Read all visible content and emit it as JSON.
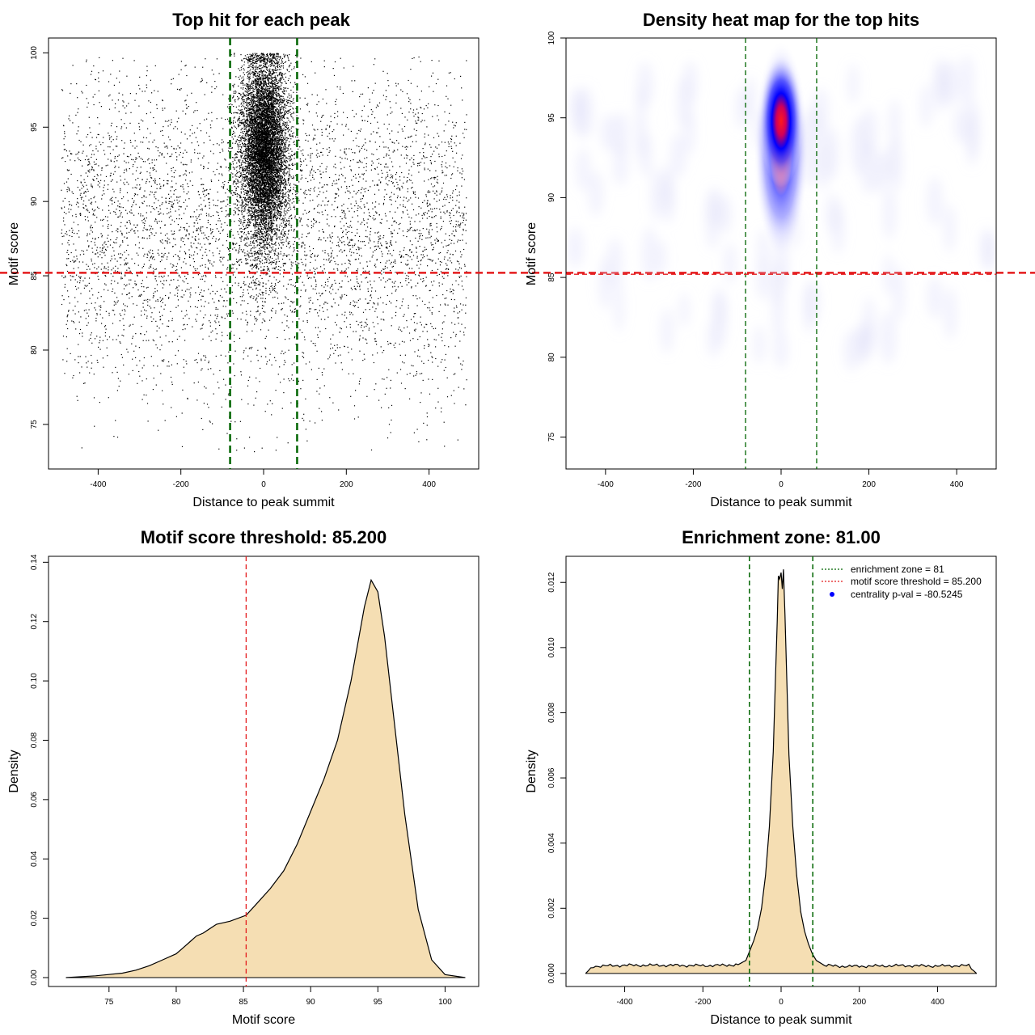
{
  "chart_data": [
    {
      "type": "scatter",
      "title": "Top hit for each peak",
      "xlabel": "Distance to peak summit",
      "ylabel": "Motif score",
      "xlim": [
        -520,
        520
      ],
      "ylim": [
        72,
        101
      ],
      "xticks": [
        -400,
        -200,
        0,
        200,
        400
      ],
      "yticks": [
        75,
        80,
        85,
        90,
        95,
        100
      ],
      "vlines": [
        -81,
        81
      ],
      "hline": 85.2,
      "colors": {
        "points": "#000000",
        "vlines": "#006400",
        "hline": "#e41a1c"
      },
      "description_of_points": {
        "background": {
          "x_range": [
            -490,
            490
          ],
          "y_center": 88,
          "y_sd": 5.5,
          "y_range": [
            73,
            100
          ]
        },
        "central_cluster": {
          "x_center": 0,
          "x_sd": 28,
          "y_center": 93.5,
          "y_sd": 3.2
        }
      }
    },
    {
      "type": "heatmap",
      "title": "Density heat map for the top hits",
      "xlabel": "Distance to peak summit",
      "ylabel": "Motif score",
      "xlim": [
        -490,
        490
      ],
      "ylim": [
        73,
        100
      ],
      "xticks": [
        -400,
        -200,
        0,
        200,
        400
      ],
      "yticks": [
        75,
        80,
        85,
        90,
        95,
        100
      ],
      "vlines": [
        -81,
        81
      ],
      "hline": 85.2,
      "peak": {
        "x": 0,
        "y": 94.8
      },
      "colors": {
        "low": "#ffffff",
        "mid": "#0000ff",
        "high": "#ff0000",
        "vlines": "#006400",
        "hline": "#e41a1c"
      }
    },
    {
      "type": "area",
      "title": "Motif score threshold: 85.200",
      "xlabel": "Motif score",
      "ylabel": "Density",
      "xlim": [
        70.5,
        102.5
      ],
      "ylim": [
        -0.003,
        0.142
      ],
      "xticks": [
        75,
        80,
        85,
        90,
        95,
        100
      ],
      "yticks": [
        0.0,
        0.02,
        0.04,
        0.06,
        0.08,
        0.1,
        0.12,
        0.14
      ],
      "ytick_labels": [
        "0.00",
        "0.02",
        "0.04",
        "0.06",
        "0.08",
        "0.10",
        "0.12",
        "0.14"
      ],
      "vline": 85.2,
      "x": [
        71.8,
        74,
        76,
        77,
        78,
        79,
        80,
        80.5,
        81,
        81.5,
        82,
        83,
        84,
        85.2,
        86,
        87,
        88,
        89,
        90,
        91,
        92,
        93,
        94,
        94.5,
        95,
        95.5,
        96,
        97,
        98,
        99,
        100,
        101.5
      ],
      "y": [
        0.0,
        0.0006,
        0.0015,
        0.0025,
        0.004,
        0.006,
        0.008,
        0.01,
        0.012,
        0.014,
        0.015,
        0.018,
        0.019,
        0.021,
        0.025,
        0.03,
        0.036,
        0.045,
        0.056,
        0.067,
        0.08,
        0.1,
        0.125,
        0.134,
        0.13,
        0.115,
        0.095,
        0.055,
        0.023,
        0.006,
        0.001,
        0.0
      ],
      "colors": {
        "fill": "#f5deb3",
        "line": "#000000",
        "vline": "#e41a1c"
      }
    },
    {
      "type": "area",
      "title": "Enrichment zone: 81.00",
      "xlabel": "Distance to peak summit",
      "ylabel": "Density",
      "xlim": [
        -550,
        550
      ],
      "ylim": [
        -0.0004,
        0.0128
      ],
      "xticks": [
        -400,
        -200,
        0,
        200,
        400
      ],
      "yticks": [
        0.0,
        0.002,
        0.004,
        0.006,
        0.008,
        0.01,
        0.012
      ],
      "ytick_labels": [
        "0.000",
        "0.002",
        "0.004",
        "0.006",
        "0.008",
        "0.010",
        "0.012"
      ],
      "vlines": [
        -81,
        81
      ],
      "x": [
        -500,
        -480,
        -400,
        -300,
        -200,
        -150,
        -110,
        -90,
        -80,
        -70,
        -60,
        -50,
        -40,
        -30,
        -20,
        -15,
        -10,
        -7,
        -4,
        0,
        3,
        6,
        10,
        15,
        20,
        30,
        40,
        50,
        60,
        70,
        80,
        90,
        110,
        150,
        200,
        300,
        400,
        480,
        500
      ],
      "y": [
        0.0,
        0.00022,
        0.00025,
        0.00025,
        0.00024,
        0.00025,
        0.00027,
        0.0004,
        0.0007,
        0.001,
        0.0014,
        0.002,
        0.003,
        0.0045,
        0.0068,
        0.0088,
        0.0108,
        0.0122,
        0.0121,
        0.0123,
        0.0118,
        0.0124,
        0.011,
        0.0088,
        0.0067,
        0.0045,
        0.003,
        0.0019,
        0.0013,
        0.0009,
        0.0006,
        0.0004,
        0.00025,
        0.00022,
        0.00022,
        0.00024,
        0.00023,
        0.00024,
        0.0
      ],
      "legend": {
        "placement": "top-right",
        "entries": [
          {
            "label": "enrichment zone = 81",
            "style": "dotted-line",
            "color": "#006400"
          },
          {
            "label": "motif score threshold = 85.200",
            "style": "dotted-line",
            "color": "#e41a1c"
          },
          {
            "label": "centrality p-val = -80.5245",
            "style": "point",
            "color": "#0000ff"
          }
        ]
      },
      "colors": {
        "fill": "#f5deb3",
        "line": "#000000",
        "vlines": "#006400"
      }
    }
  ]
}
